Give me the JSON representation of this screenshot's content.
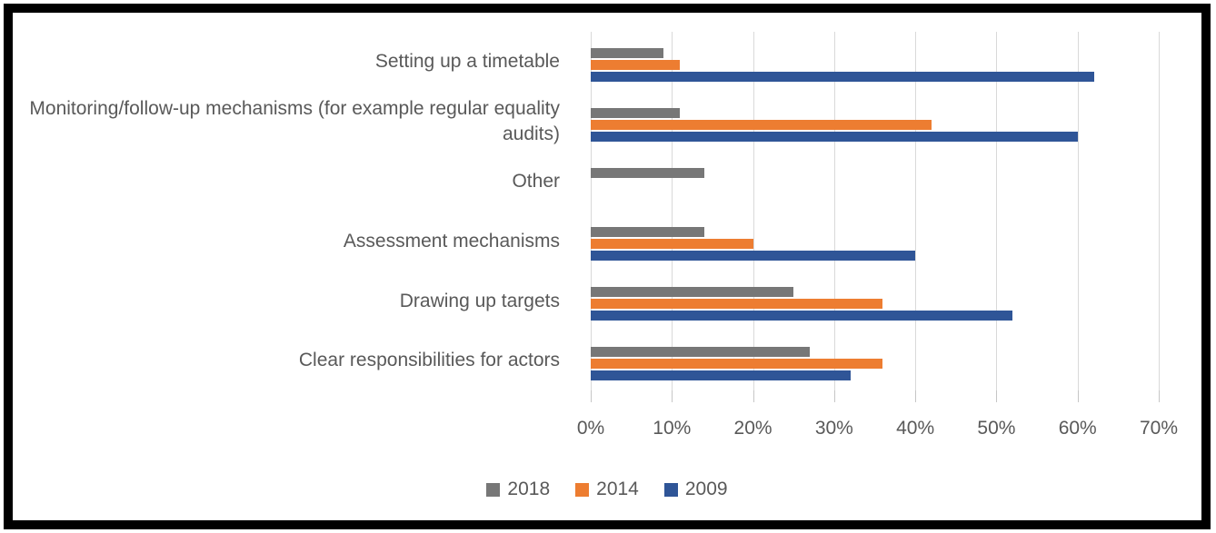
{
  "chart_data": {
    "type": "bar",
    "orientation": "horizontal",
    "title": "",
    "xlabel": "",
    "ylabel": "",
    "xlim": [
      0,
      70
    ],
    "grid": true,
    "legend_position": "bottom",
    "categories": [
      "Setting up a timetable",
      "Monitoring/follow-up mechanisms (for example regular equality audits)",
      "Other",
      "Assessment mechanisms",
      "Drawing up targets",
      "Clear responsibilities for actors"
    ],
    "series": [
      {
        "name": "2018",
        "color": "#777777",
        "values": [
          9,
          11,
          14,
          14,
          25,
          27
        ]
      },
      {
        "name": "2014",
        "color": "#ED7D31",
        "values": [
          11,
          42,
          0,
          20,
          36,
          36
        ]
      },
      {
        "name": "2009",
        "color": "#2F5597",
        "values": [
          62,
          60,
          0,
          40,
          52,
          32
        ]
      }
    ],
    "x_tick_labels": [
      "0%",
      "10%",
      "20%",
      "30%",
      "40%",
      "50%",
      "60%",
      "70%"
    ]
  },
  "colors": {
    "gridline": "#d9d9d9",
    "tick": "#c6c6c6",
    "text": "#595959",
    "frame_border": "#000000",
    "background": "#ffffff"
  }
}
